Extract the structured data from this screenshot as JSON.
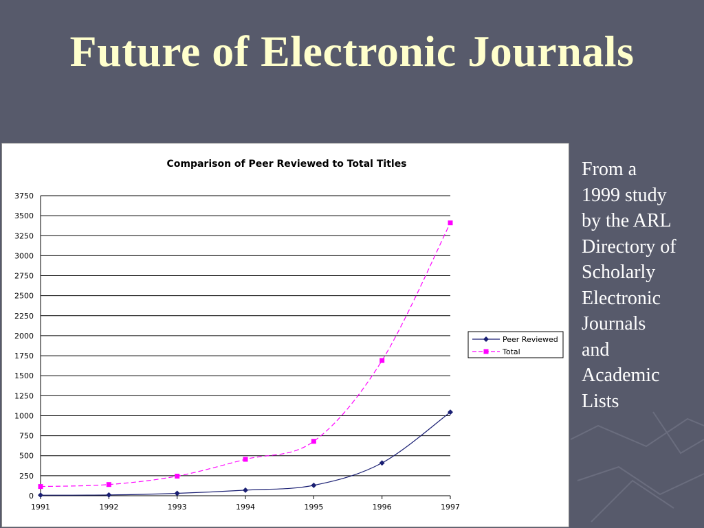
{
  "slide": {
    "title": "Future of Electronic Journals",
    "side_note": "From a\n1999 study\nby the ARL\nDirectory of\nScholarly\nElectronic\nJournals\nand\nAcademic\nLists"
  },
  "colors": {
    "background": "#575a6b",
    "title": "#ffffcc",
    "peer_reviewed": "#1a1f73",
    "total": "#ff00ff"
  },
  "chart_data": {
    "type": "line",
    "title": "Comparison of Peer Reviewed to Total Titles",
    "xlabel": "",
    "ylabel": "",
    "x": [
      "1991",
      "1992",
      "1993",
      "1994",
      "1995",
      "1996",
      "1997"
    ],
    "ylim": [
      0,
      3750
    ],
    "yticks": [
      "0",
      "250",
      "500",
      "750",
      "1000",
      "1250",
      "1500",
      "1750",
      "2000",
      "2250",
      "2500",
      "2750",
      "3000",
      "3250",
      "3500",
      "3750"
    ],
    "grid": true,
    "legend_position": "right",
    "series": [
      {
        "name": "Peer Reviewed",
        "values": [
          7,
          10,
          30,
          70,
          130,
          410,
          1045
        ],
        "color": "#1a1f73",
        "marker": "diamond",
        "dash": "solid"
      },
      {
        "name": "Total",
        "values": [
          115,
          140,
          245,
          455,
          680,
          1690,
          3410
        ],
        "color": "#ff00ff",
        "marker": "square",
        "dash": "dashed"
      }
    ]
  }
}
